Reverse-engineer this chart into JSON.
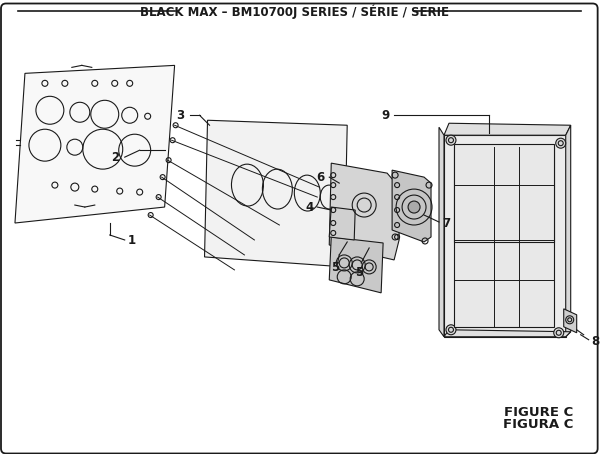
{
  "title": "BLACK MAX – BM10700J SERIES / SÉRIE / SERIE",
  "figure_label": "FIGURE C",
  "figura_label": "FIGURA C",
  "bg_color": "#ffffff",
  "line_color": "#1a1a1a",
  "title_fontsize": 8.5,
  "label_fontsize": 8.5
}
